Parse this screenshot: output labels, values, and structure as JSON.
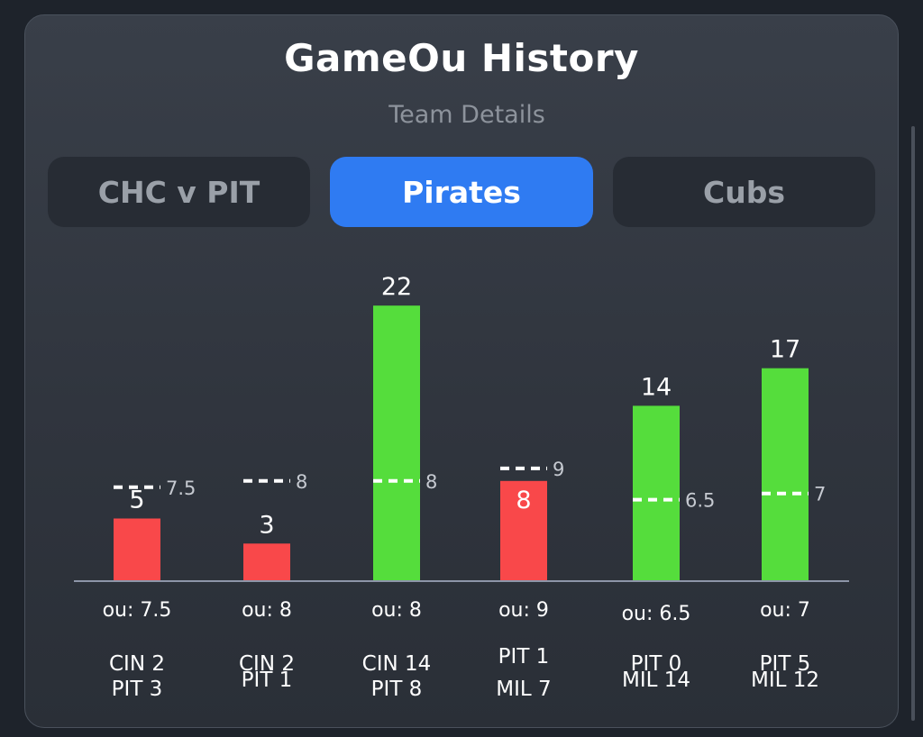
{
  "header": {
    "title": "GameOu History",
    "subtitle": "Team Details"
  },
  "tabs": [
    {
      "label": "CHC v PIT",
      "active": false
    },
    {
      "label": "Pirates",
      "active": true
    },
    {
      "label": "Cubs",
      "active": false
    }
  ],
  "colors": {
    "over": "#55dd3c",
    "under": "#f9484a",
    "active_tab": "#2f7bf2",
    "line_marker": "#ffffff"
  },
  "chart_data": {
    "type": "bar",
    "categories": [
      "CIN 2 / PIT 3",
      "CIN 2 / PIT 1",
      "CIN 14 / PIT 8",
      "PIT 1 / MIL 7",
      "PIT 0 / MIL 14",
      "PIT 5 / MIL 12"
    ],
    "values": [
      5,
      3,
      22,
      8,
      14,
      17
    ],
    "ou_lines": [
      7.5,
      8,
      8,
      9,
      6.5,
      7
    ],
    "ou_line_labels": [
      "7.5",
      "8",
      "8",
      "9",
      "6.5",
      "7"
    ],
    "value_labels": [
      "5",
      "3",
      "22",
      "8",
      "14",
      "17"
    ],
    "ou_labels": [
      "ou: 7.5",
      "ou: 8",
      "ou: 8",
      "ou: 9",
      "ou: 6.5",
      "ou: 7"
    ],
    "results": [
      "under",
      "under",
      "over",
      "under",
      "over",
      "over"
    ],
    "scores": [
      [
        "CIN 2",
        "PIT 3"
      ],
      [
        "CIN 2",
        "PIT 1"
      ],
      [
        "CIN 14",
        "PIT 8"
      ],
      [
        "PIT 1",
        "MIL 7"
      ],
      [
        "PIT 0",
        "MIL 14"
      ],
      [
        "PIT 5",
        "MIL 12"
      ]
    ]
  }
}
